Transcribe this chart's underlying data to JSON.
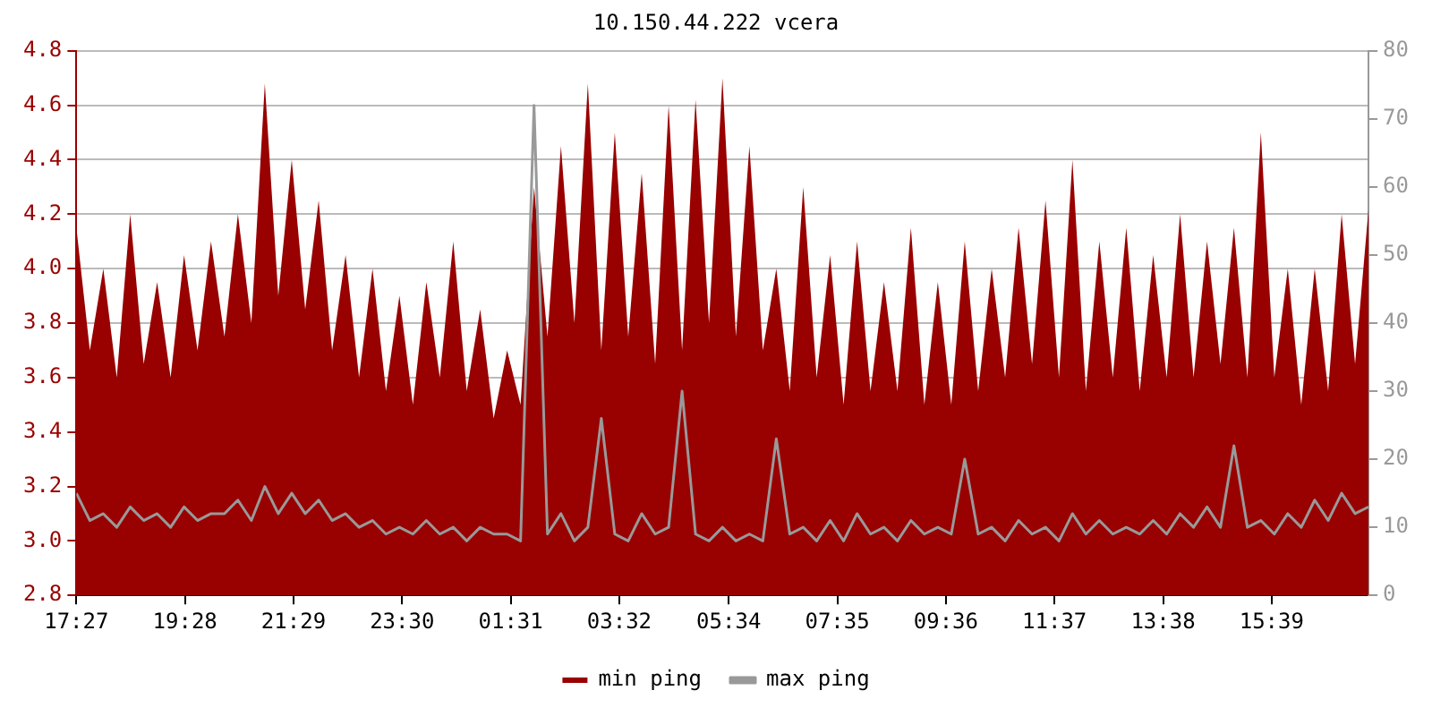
{
  "chart_data": {
    "type": "area",
    "title": "10.150.44.222 vcera",
    "legend": "bottom",
    "grid": "y",
    "marker": "none",
    "line_style": "solid",
    "x": [
      "--01-01T17:27",
      "--01-01T17:42",
      "--01-01T17:57",
      "--01-01T18:12",
      "--01-01T18:27",
      "--01-01T18:42",
      "--01-01T18:57",
      "--01-01T19:12",
      "--01-01T19:27",
      "--01-01T19:42",
      "--01-01T19:57",
      "--01-01T20:12",
      "--01-01T20:27",
      "--01-01T20:42",
      "--01-01T20:57",
      "--01-01T21:12",
      "--01-01T21:27",
      "--01-01T21:42",
      "--01-01T21:57",
      "--01-01T22:12",
      "--01-01T22:27",
      "--01-01T22:42",
      "--01-01T22:57",
      "--01-01T23:12",
      "--01-01T23:27",
      "--01-01T23:42",
      "--01-01T23:57",
      "--01-02T00:12",
      "--01-02T00:27",
      "--01-02T00:42",
      "--01-02T00:57",
      "--01-02T01:12",
      "--01-02T01:27",
      "--01-02T01:42",
      "--01-02T01:57",
      "--01-02T02:12",
      "--01-02T02:27",
      "--01-02T02:42",
      "--01-02T02:57",
      "--01-02T03:12",
      "--01-02T03:27",
      "--01-02T03:42",
      "--01-02T03:57",
      "--01-02T04:12",
      "--01-02T04:27",
      "--01-02T04:42",
      "--01-02T04:57",
      "--01-02T05:12",
      "--01-02T05:27",
      "--01-02T05:42",
      "--01-02T05:57",
      "--01-02T06:12",
      "--01-02T06:27",
      "--01-02T06:42",
      "--01-02T06:57",
      "--01-02T07:12",
      "--01-02T07:27",
      "--01-02T07:42",
      "--01-02T07:57",
      "--01-02T08:12",
      "--01-02T08:27",
      "--01-02T08:42",
      "--01-02T08:57",
      "--01-02T09:12",
      "--01-02T09:27",
      "--01-02T09:42",
      "--01-02T09:57",
      "--01-02T10:12",
      "--01-02T10:27",
      "--01-02T10:42",
      "--01-02T10:57",
      "--01-02T11:12",
      "--01-02T11:27",
      "--01-02T11:42",
      "--01-02T11:57",
      "--01-02T12:12",
      "--01-02T12:27",
      "--01-02T12:42",
      "--01-02T12:57",
      "--01-02T13:12",
      "--01-02T13:27",
      "--01-02T13:42",
      "--01-02T13:57",
      "--01-02T14:12",
      "--01-02T14:27",
      "--01-02T14:42",
      "--01-02T14:57",
      "--01-02T15:12",
      "--01-02T15:27",
      "--01-02T15:42",
      "--01-02T15:57",
      "--01-02T16:12",
      "--01-02T16:27",
      "--01-02T16:42",
      "--01-02T16:57",
      "--01-02T17:12",
      "--01-02T17:27"
    ],
    "xlim": [
      "--01-01T17:27",
      "--01-02T17:27"
    ],
    "xticks": [
      {
        "value": "--01-01T17:27",
        "label": "17:27"
      },
      {
        "value": "--01-01T19:28",
        "label": "19:28"
      },
      {
        "value": "--01-01T21:29",
        "label": "21:29"
      },
      {
        "value": "--01-01T23:30",
        "label": "23:30"
      },
      {
        "value": "--01-02T01:31",
        "label": "01:31"
      },
      {
        "value": "--01-02T03:32",
        "label": "03:32"
      },
      {
        "value": "--01-02T05:34",
        "label": "05:34"
      },
      {
        "value": "--01-02T07:35",
        "label": "07:35"
      },
      {
        "value": "--01-02T09:36",
        "label": "09:36"
      },
      {
        "value": "--01-02T11:37",
        "label": "11:37"
      },
      {
        "value": "--01-02T13:38",
        "label": "13:38"
      },
      {
        "value": "--01-02T15:39",
        "label": "15:39"
      }
    ],
    "ylim": [
      2.8,
      4.8
    ],
    "yticks": [
      {
        "value": 2.8,
        "label": "2.8"
      },
      {
        "value": 3,
        "label": "3.0"
      },
      {
        "value": 3.2,
        "label": "3.2"
      },
      {
        "value": 3.4,
        "label": "3.4"
      },
      {
        "value": 3.6,
        "label": "3.6"
      },
      {
        "value": 3.8,
        "label": "3.8"
      },
      {
        "value": 4,
        "label": "4.0"
      },
      {
        "value": 4.2,
        "label": "4.2"
      },
      {
        "value": 4.4,
        "label": "4.4"
      },
      {
        "value": 4.6,
        "label": "4.6"
      },
      {
        "value": 4.8,
        "label": "4.8"
      }
    ],
    "y2lim": [
      0,
      80
    ],
    "y2ticks": [
      0,
      10,
      20,
      30,
      40,
      50,
      60,
      70,
      80
    ],
    "series": [
      {
        "name": "min ping",
        "color": "#990000",
        "values": [
          4.15,
          3.7,
          4.0,
          3.6,
          4.2,
          3.65,
          3.95,
          3.6,
          4.05,
          3.7,
          4.1,
          3.75,
          4.2,
          3.8,
          4.68,
          3.9,
          4.4,
          3.85,
          4.25,
          3.7,
          4.05,
          3.6,
          4.0,
          3.55,
          3.9,
          3.5,
          3.95,
          3.6,
          4.1,
          3.55,
          3.85,
          3.45,
          3.7,
          3.5,
          4.3,
          3.75,
          4.45,
          3.8,
          4.68,
          3.7,
          4.5,
          3.75,
          4.35,
          3.65,
          4.6,
          3.7,
          4.62,
          3.8,
          4.7,
          3.75,
          4.45,
          3.7,
          4.0,
          3.55,
          4.3,
          3.6,
          4.05,
          3.5,
          4.1,
          3.55,
          3.95,
          3.55,
          4.15,
          3.5,
          3.95,
          3.5,
          4.1,
          3.55,
          4.0,
          3.6,
          4.15,
          3.65,
          4.25,
          3.6,
          4.4,
          3.55,
          4.1,
          3.6,
          4.15,
          3.55,
          4.05,
          3.6,
          4.2,
          3.6,
          4.1,
          3.65,
          4.15,
          3.6,
          4.5,
          3.6,
          4.0,
          3.5,
          4.0,
          3.55,
          4.2,
          3.65,
          4.22
        ]
      },
      {
        "name": "max ping",
        "color": "#999999",
        "type": "line",
        "axis": "y2",
        "values": [
          15,
          11,
          12,
          10,
          13,
          11,
          12,
          10,
          13,
          11,
          12,
          12,
          14,
          11,
          16,
          12,
          15,
          12,
          14,
          11,
          12,
          10,
          11,
          9,
          10,
          9,
          11,
          9,
          10,
          8,
          10,
          9,
          9,
          8,
          72,
          9,
          12,
          8,
          10,
          26,
          9,
          8,
          12,
          9,
          10,
          30,
          9,
          8,
          10,
          8,
          9,
          8,
          23,
          9,
          10,
          8,
          11,
          8,
          12,
          9,
          10,
          8,
          11,
          9,
          10,
          9,
          20,
          9,
          10,
          8,
          11,
          9,
          10,
          8,
          12,
          9,
          11,
          9,
          10,
          9,
          11,
          9,
          12,
          10,
          13,
          10,
          22,
          10,
          11,
          9,
          12,
          10,
          14,
          11,
          15,
          12,
          13
        ]
      }
    ]
  }
}
